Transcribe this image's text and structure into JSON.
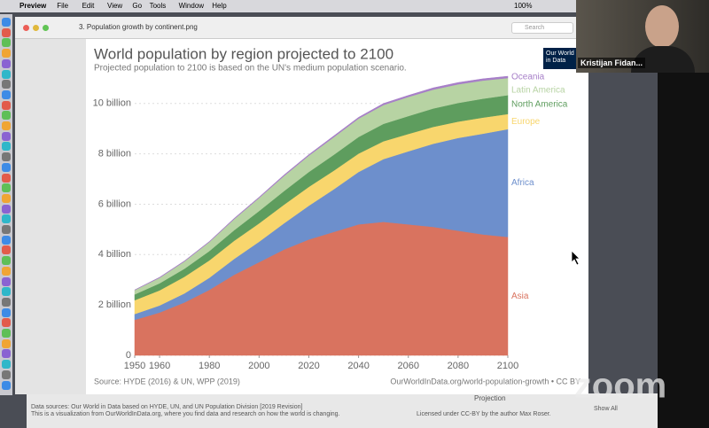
{
  "menu_bar": {
    "items": [
      "Preview",
      "File",
      "Edit",
      "View",
      "Go",
      "Tools",
      "Window",
      "Help"
    ],
    "battery": "100%"
  },
  "window": {
    "title": "3. Population growth by continent.png",
    "search": "Search"
  },
  "logo": {
    "line1": "Our World",
    "line2": "in Data"
  },
  "chart_data": {
    "type": "area",
    "title": "World population by region projected to 2100",
    "subtitle": "Projected population to 2100 is based on the UN's medium population scenario.",
    "x": [
      1950,
      1960,
      1970,
      1980,
      1990,
      2000,
      2010,
      2020,
      2030,
      2040,
      2050,
      2060,
      2070,
      2080,
      2090,
      2100
    ],
    "series": [
      {
        "name": "Asia",
        "color": "#d9735f",
        "values": [
          1.41,
          1.7,
          2.1,
          2.6,
          3.2,
          3.7,
          4.2,
          4.6,
          4.9,
          5.2,
          5.3,
          5.2,
          5.1,
          4.95,
          4.8,
          4.7
        ]
      },
      {
        "name": "Africa",
        "color": "#6d8fcc",
        "values": [
          0.23,
          0.28,
          0.36,
          0.48,
          0.63,
          0.81,
          1.04,
          1.34,
          1.69,
          2.08,
          2.49,
          2.9,
          3.3,
          3.68,
          4.0,
          4.28
        ]
      },
      {
        "name": "Europe",
        "color": "#f8d66d",
        "values": [
          0.55,
          0.6,
          0.66,
          0.69,
          0.72,
          0.73,
          0.74,
          0.75,
          0.74,
          0.73,
          0.71,
          0.69,
          0.67,
          0.65,
          0.64,
          0.6
        ]
      },
      {
        "name": "North America",
        "color": "#5e9d5e",
        "values": [
          0.23,
          0.28,
          0.32,
          0.37,
          0.42,
          0.49,
          0.54,
          0.59,
          0.63,
          0.66,
          0.69,
          0.71,
          0.73,
          0.74,
          0.75,
          0.75
        ]
      },
      {
        "name": "Latin America",
        "color": "#b7d3a3",
        "values": [
          0.17,
          0.22,
          0.29,
          0.36,
          0.44,
          0.52,
          0.6,
          0.65,
          0.7,
          0.73,
          0.75,
          0.76,
          0.75,
          0.74,
          0.72,
          0.68
        ]
      },
      {
        "name": "Oceania",
        "color": "#a77fc8",
        "values": [
          0.01,
          0.02,
          0.02,
          0.02,
          0.03,
          0.03,
          0.04,
          0.04,
          0.05,
          0.05,
          0.06,
          0.06,
          0.07,
          0.07,
          0.07,
          0.07
        ]
      }
    ],
    "xlim": [
      1950,
      2100
    ],
    "xticks": [
      1950,
      1960,
      1980,
      2000,
      2020,
      2040,
      2060,
      2080,
      2100
    ],
    "ylim": [
      0,
      10.8
    ],
    "yticks": [
      0,
      {
        "value": 2,
        "label": "2 billion"
      },
      {
        "value": 4,
        "label": "4 billion"
      },
      {
        "value": 6,
        "label": "6 billion"
      },
      {
        "value": 8,
        "label": "8 billion"
      },
      {
        "value": 10,
        "label": "10 billion"
      }
    ],
    "grid": true,
    "source": "Source: HYDE (2016) & UN, WPP (2019)",
    "credit": "OurWorldInData.org/world-population-growth • CC BY"
  },
  "background_window": {
    "lines": [
      "Data sources: Our World in Data based on HYDE, UN, and UN Population Division [2019 Revision]",
      "This is a visualization from OurWorldInData.org, where you find data and research on how the world is changing."
    ],
    "license": "Licensed under CC-BY by the author Max Roser.",
    "projection": "Projection",
    "show_all": "Show All"
  },
  "zoom": {
    "participant": "Kristijan Fidan...",
    "watermark": "zoom"
  }
}
